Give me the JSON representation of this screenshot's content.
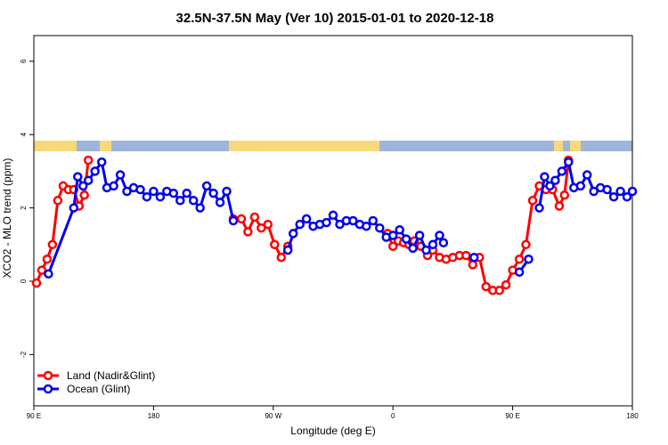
{
  "chart_data": {
    "type": "line",
    "title": "32.5N-37.5N May (Ver 10)   2015-01-01 to 2020-12-18",
    "xlabel": "Longitude (deg E)",
    "ylabel": "XCO2 - MLO trend (ppm)",
    "x_tick_labels": [
      "90 E",
      "180",
      "90 W",
      "0",
      "90 E",
      "180"
    ],
    "y_tick_labels": [
      "-2",
      "0",
      "2",
      "4",
      "6"
    ],
    "x_axis_values": [
      90,
      180,
      270,
      360,
      450,
      540
    ],
    "xlim": [
      90,
      540
    ],
    "ylim": [
      -3.4,
      6.7
    ],
    "legend_position": "bottom-left",
    "map_band_colors": {
      "ocean": "#9db5db",
      "land": "#f7d87a"
    },
    "series": [
      {
        "name": "Land (Nadir&Glint)",
        "color": "#ff0000",
        "segments": [
          [
            [
              92,
              -0.05
            ],
            [
              96,
              0.3
            ],
            [
              100,
              0.6
            ],
            [
              104,
              1.0
            ],
            [
              108,
              2.2
            ],
            [
              112,
              2.6
            ],
            [
              116,
              2.5
            ],
            [
              120,
              2.5
            ],
            [
              124,
              2.05
            ],
            [
              128,
              2.35
            ],
            [
              131,
              3.3
            ]
          ],
          [
            [
              240,
              1.7
            ],
            [
              246,
              1.7
            ],
            [
              251,
              1.35
            ],
            [
              256,
              1.75
            ],
            [
              261,
              1.45
            ],
            [
              266,
              1.55
            ],
            [
              271,
              1.0
            ],
            [
              276,
              0.65
            ],
            [
              281,
              0.95
            ]
          ],
          [
            [
              356,
              1.3
            ],
            [
              360,
              0.95
            ],
            [
              364,
              1.1
            ],
            [
              368,
              1.05
            ],
            [
              372,
              1.0
            ],
            [
              376,
              1.1
            ],
            [
              381,
              0.95
            ],
            [
              386,
              0.7
            ],
            [
              390,
              0.85
            ],
            [
              395,
              0.65
            ],
            [
              400,
              0.6
            ],
            [
              405,
              0.65
            ],
            [
              410,
              0.7
            ],
            [
              415,
              0.7
            ],
            [
              420,
              0.45
            ],
            [
              425,
              0.65
            ],
            [
              430,
              -0.15
            ],
            [
              435,
              -0.25
            ],
            [
              440,
              -0.25
            ],
            [
              445,
              -0.1
            ],
            [
              450,
              0.3
            ],
            [
              455,
              0.6
            ],
            [
              460,
              1.0
            ],
            [
              465,
              2.2
            ],
            [
              470,
              2.6
            ],
            [
              475,
              2.5
            ],
            [
              480,
              2.5
            ],
            [
              485,
              2.05
            ],
            [
              489,
              2.35
            ],
            [
              492,
              3.3
            ]
          ]
        ]
      },
      {
        "name": "Ocean (Glint)",
        "color": "#0000ee",
        "segments": [
          [
            [
              101,
              0.2
            ],
            [
              120,
              2.0
            ],
            [
              123,
              2.85
            ],
            [
              127,
              2.6
            ],
            [
              131,
              2.75
            ],
            [
              136,
              3.0
            ],
            [
              141,
              3.25
            ],
            [
              145,
              2.55
            ],
            [
              150,
              2.6
            ],
            [
              155,
              2.9
            ],
            [
              160,
              2.45
            ],
            [
              165,
              2.55
            ],
            [
              170,
              2.5
            ],
            [
              175,
              2.3
            ],
            [
              180,
              2.45
            ],
            [
              185,
              2.3
            ],
            [
              190,
              2.45
            ],
            [
              195,
              2.4
            ],
            [
              200,
              2.2
            ],
            [
              205,
              2.4
            ],
            [
              210,
              2.2
            ],
            [
              215,
              2.0
            ],
            [
              220,
              2.6
            ],
            [
              225,
              2.4
            ],
            [
              230,
              2.15
            ],
            [
              235,
              2.45
            ],
            [
              240,
              1.65
            ]
          ],
          [
            [
              281,
              0.85
            ],
            [
              285,
              1.3
            ],
            [
              290,
              1.55
            ],
            [
              295,
              1.7
            ],
            [
              300,
              1.5
            ],
            [
              305,
              1.55
            ],
            [
              310,
              1.6
            ],
            [
              315,
              1.8
            ],
            [
              320,
              1.55
            ],
            [
              325,
              1.65
            ],
            [
              330,
              1.65
            ],
            [
              335,
              1.55
            ],
            [
              340,
              1.5
            ],
            [
              345,
              1.65
            ],
            [
              350,
              1.45
            ],
            [
              355,
              1.2
            ],
            [
              360,
              1.25
            ],
            [
              365,
              1.4
            ],
            [
              370,
              1.15
            ],
            [
              375,
              0.9
            ],
            [
              380,
              1.25
            ],
            [
              385,
              0.85
            ],
            [
              390,
              1.0
            ],
            [
              395,
              1.25
            ],
            [
              398,
              1.05
            ]
          ],
          [
            [
              421,
              0.65
            ]
          ],
          [
            [
              455,
              0.25
            ],
            [
              462,
              0.6
            ]
          ],
          [
            [
              470,
              2.0
            ],
            [
              474,
              2.85
            ],
            [
              478,
              2.6
            ],
            [
              482,
              2.75
            ],
            [
              487,
              3.0
            ],
            [
              492,
              3.25
            ],
            [
              496,
              2.55
            ],
            [
              501,
              2.6
            ],
            [
              506,
              2.9
            ],
            [
              511,
              2.45
            ],
            [
              516,
              2.55
            ],
            [
              521,
              2.5
            ],
            [
              526,
              2.3
            ],
            [
              531,
              2.45
            ],
            [
              536,
              2.3
            ],
            [
              540,
              2.45
            ]
          ]
        ]
      }
    ]
  }
}
